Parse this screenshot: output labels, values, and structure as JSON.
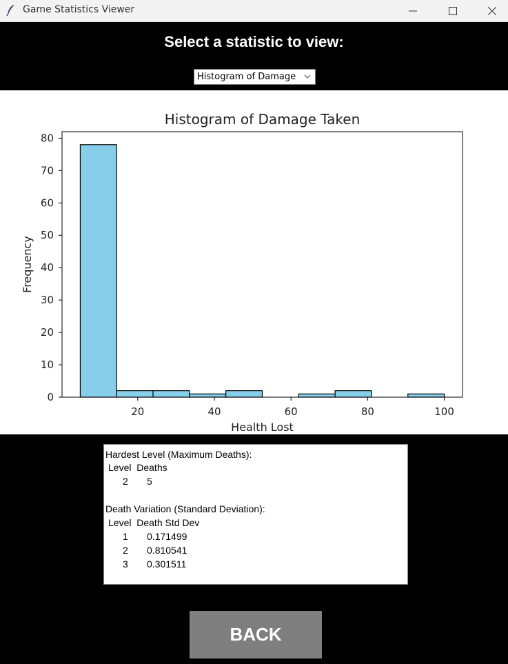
{
  "window": {
    "title": "Game Statistics Viewer",
    "icon": "feather-icon"
  },
  "header": {
    "label": "Select a statistic to view:"
  },
  "dropdown": {
    "selected": "Histogram of Damage"
  },
  "chart_data": {
    "type": "bar",
    "title": "Histogram of Damage Taken",
    "xlabel": "Health Lost",
    "ylabel": "Frequency",
    "bin_edges": [
      5,
      14.5,
      24,
      33.5,
      43,
      52.5,
      62,
      71.5,
      81,
      90.5,
      100
    ],
    "values": [
      78,
      2,
      2,
      1,
      2,
      0,
      1,
      2,
      0,
      1
    ],
    "xticks": [
      "20",
      "40",
      "60",
      "80",
      "100"
    ],
    "yticks": [
      "0",
      "10",
      "20",
      "30",
      "40",
      "50",
      "60",
      "70",
      "80"
    ],
    "xlim": [
      0.25,
      104.75
    ],
    "ylim": [
      0,
      82
    ],
    "bar_color": "#87CEEB",
    "grid": false
  },
  "stats": {
    "hardest_title": "Hardest Level (Maximum Deaths):",
    "hardest_header": "Level  Deaths",
    "hardest_rows": [
      "2       5"
    ],
    "variation_title": "Death Variation (Standard Deviation):",
    "variation_header": "Level  Death Std Dev",
    "variation_rows": [
      "1       0.171499",
      "2       0.810541",
      "3       0.301511"
    ]
  },
  "back_button": {
    "label": "BACK"
  }
}
